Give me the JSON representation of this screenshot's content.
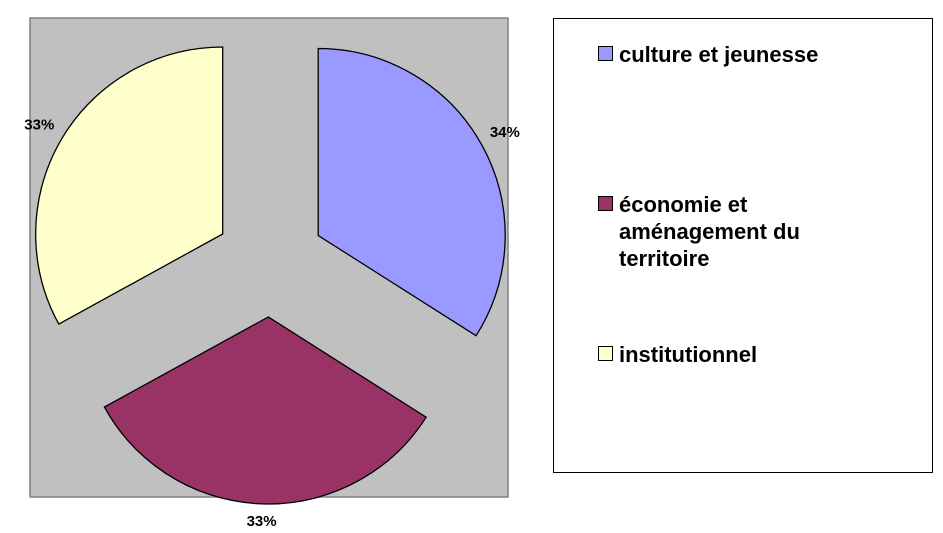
{
  "chart_data": {
    "type": "pie",
    "categories": [
      "culture et jeunesse",
      "économie et aménagement du territoire",
      "institutionnel"
    ],
    "values": [
      34,
      33,
      33
    ],
    "value_labels": [
      "34%",
      "33%",
      "33%"
    ],
    "colors": [
      "#9999ff",
      "#993366",
      "#ffffcc"
    ],
    "legend": "right"
  }
}
